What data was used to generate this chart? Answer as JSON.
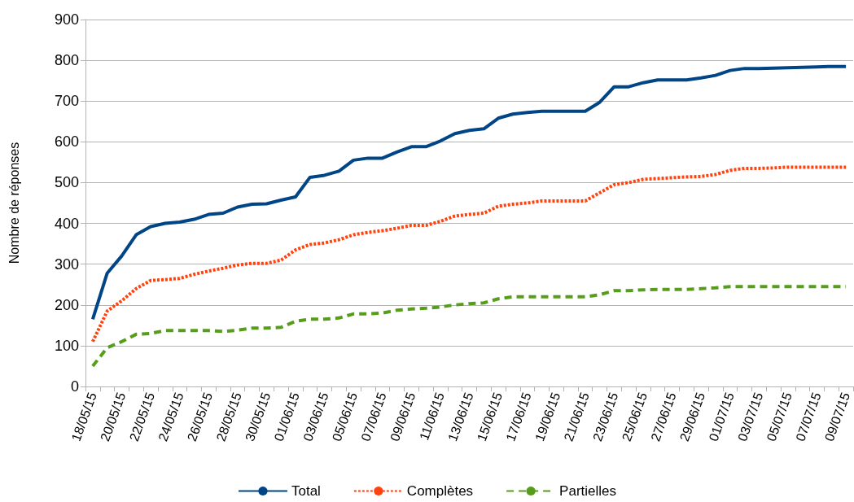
{
  "chart_data": {
    "type": "line",
    "ylabel": "Nombre de réponses",
    "categories": [
      "18/05/15",
      null,
      "20/05/15",
      null,
      "22/05/15",
      null,
      "24/05/15",
      null,
      "26/05/15",
      null,
      "28/05/15",
      null,
      "30/05/15",
      null,
      "01/06/15",
      null,
      "03/06/15",
      null,
      "05/06/15",
      null,
      "07/06/15",
      null,
      "09/06/15",
      null,
      "11/06/15",
      null,
      "13/06/15",
      null,
      "15/06/15",
      null,
      "17/06/15",
      null,
      "19/06/15",
      null,
      "21/06/15",
      null,
      "23/06/15",
      null,
      "25/06/15",
      null,
      "27/06/15",
      null,
      "29/06/15",
      null,
      "01/07/15",
      null,
      "03/07/15",
      null,
      "05/07/15",
      null,
      "07/07/15",
      null,
      "09/07/15"
    ],
    "series": [
      {
        "name": "Total",
        "color": "#004586",
        "line_style": "solid",
        "values": [
          165,
          278,
          320,
          372,
          392,
          400,
          403,
          410,
          422,
          425,
          440,
          447,
          448,
          457,
          465,
          513,
          518,
          528,
          555,
          560,
          560,
          575,
          588,
          588,
          602,
          620,
          628,
          632,
          658,
          668,
          672,
          675,
          675,
          675,
          675,
          697,
          735,
          735,
          745,
          752,
          752,
          752,
          757,
          763,
          775,
          780,
          780,
          781,
          782,
          783,
          784,
          785,
          785
        ]
      },
      {
        "name": "Complètes",
        "color": "#ff420e",
        "line_style": "dotted",
        "values": [
          110,
          185,
          210,
          240,
          260,
          262,
          265,
          275,
          283,
          290,
          298,
          302,
          302,
          310,
          335,
          348,
          352,
          360,
          372,
          378,
          382,
          388,
          395,
          395,
          405,
          418,
          422,
          425,
          442,
          447,
          450,
          455,
          455,
          455,
          455,
          475,
          495,
          500,
          508,
          510,
          512,
          514,
          515,
          520,
          530,
          535,
          535,
          536,
          538,
          538,
          538,
          538,
          538
        ]
      },
      {
        "name": "Partielles",
        "color": "#579d1c",
        "line_style": "dashed",
        "values": [
          50,
          95,
          110,
          128,
          130,
          137,
          137,
          137,
          137,
          135,
          138,
          143,
          143,
          145,
          160,
          165,
          165,
          168,
          178,
          178,
          180,
          187,
          190,
          192,
          195,
          200,
          203,
          205,
          215,
          220,
          220,
          220,
          220,
          220,
          220,
          225,
          235,
          235,
          237,
          238,
          238,
          238,
          240,
          242,
          245,
          245,
          245,
          245,
          245,
          245,
          245,
          245,
          245
        ]
      }
    ],
    "ylim": [
      0,
      900
    ],
    "yticks": [
      0,
      100,
      200,
      300,
      400,
      500,
      600,
      700,
      800,
      900
    ],
    "grid": "y",
    "legend": "bottom",
    "marker": "none"
  }
}
